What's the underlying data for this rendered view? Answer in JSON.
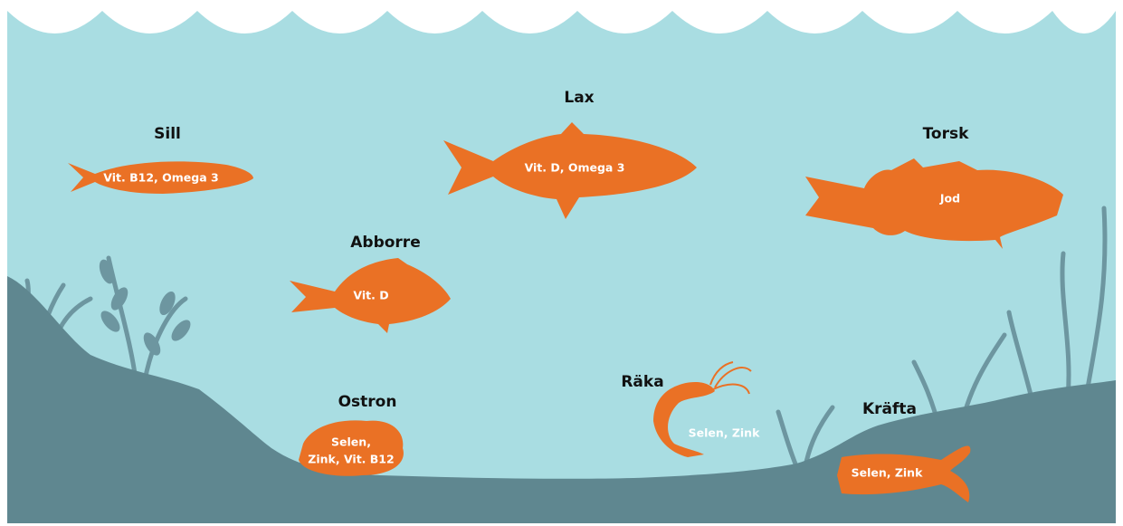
{
  "items": [
    {
      "name": "Sill",
      "nutrients": [
        "Vit. B12, Omega 3"
      ]
    },
    {
      "name": "Lax",
      "nutrients": [
        "Vit. D, Omega 3"
      ]
    },
    {
      "name": "Torsk",
      "nutrients": [
        "Jod"
      ]
    },
    {
      "name": "Abborre",
      "nutrients": [
        "Vit. D"
      ]
    },
    {
      "name": "Ostron",
      "nutrients": [
        "Selen,",
        "Zink, Vit. B12"
      ]
    },
    {
      "name": "Räka",
      "nutrients": [
        "Selen, Zink"
      ]
    },
    {
      "name": "Kräfta",
      "nutrients": [
        "Selen, Zink"
      ]
    }
  ]
}
